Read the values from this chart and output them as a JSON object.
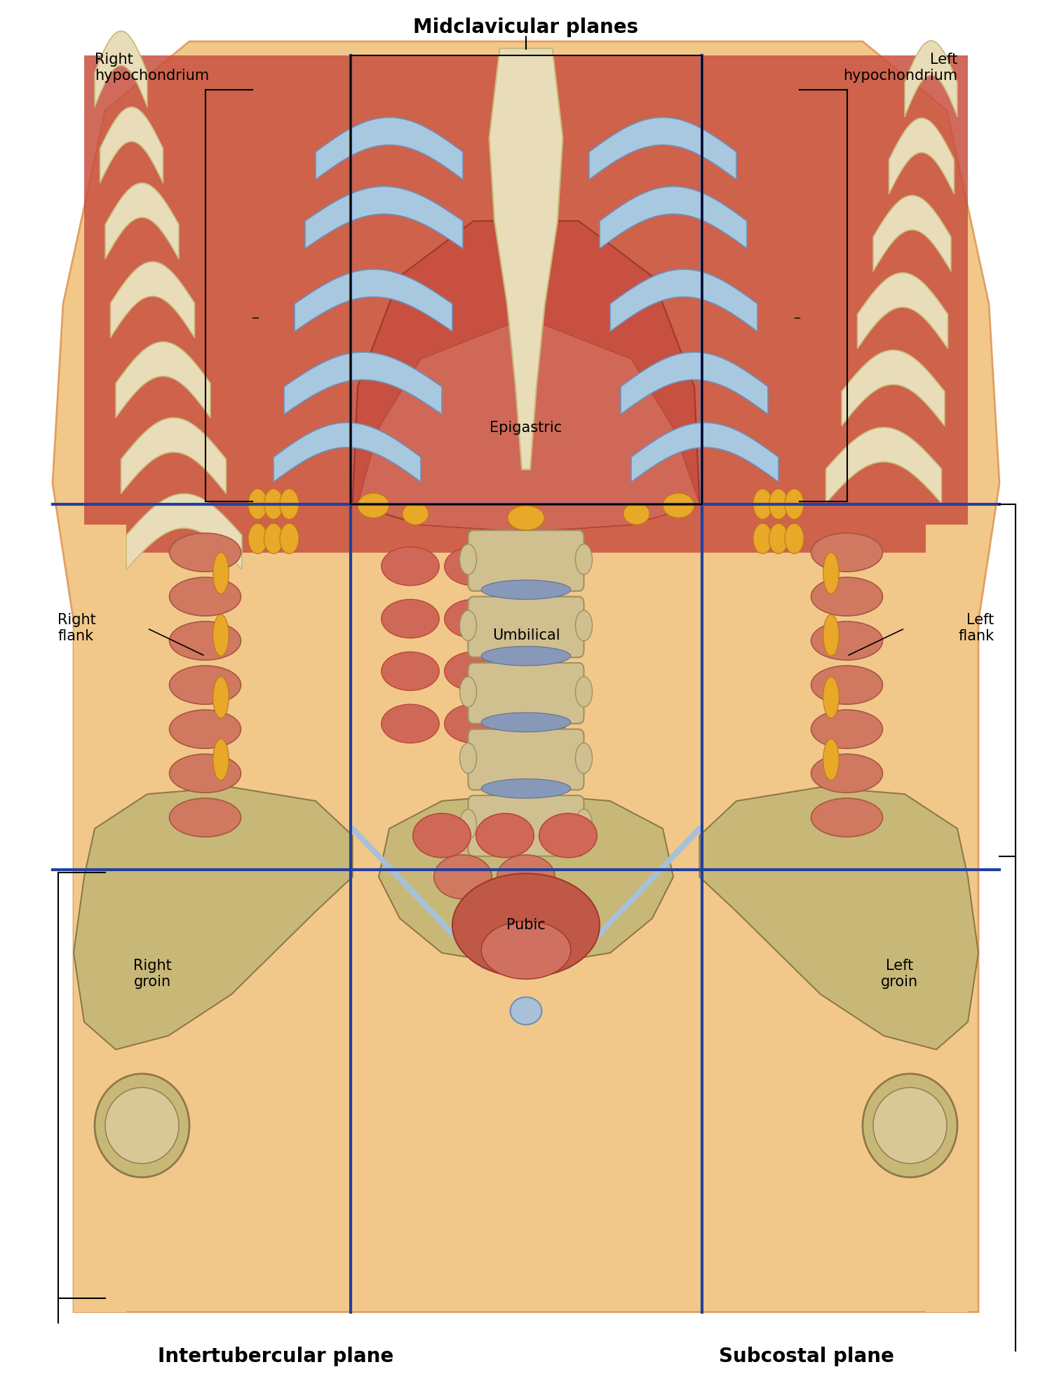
{
  "figsize": [
    15.0,
    19.69
  ],
  "dpi": 100,
  "bg_color": "#ffffff",
  "labels": {
    "right_hypochondrium": "Right\nhypochondrium",
    "left_hypochondrium": "Left\nhypochondrium",
    "midclavicular_planes": "Midclavicular planes",
    "epigastric": "Epigastric",
    "right_flank": "Right\nflank",
    "left_flank": "Left\nflank",
    "umbilical": "Umbilical",
    "right_groin": "Right\ngroin",
    "left_groin": "Left\ngroin",
    "pubic": "Pubic",
    "intertubercular_plane": "Intertubercular plane",
    "subcostal_plane": "Subcostal plane"
  },
  "skin_color": "#f2c88a",
  "skin_edge_color": "#e0a060",
  "rib_bone_color": "#e8ddb8",
  "rib_bone_edge": "#c8b878",
  "rib_cartilage_color": "#a8c8e0",
  "rib_cartilage_edge": "#7090b8",
  "muscle_color": "#c85040",
  "muscle_dark": "#a03828",
  "liver_color": "#b84838",
  "liver_light": "#d06858",
  "colon_color": "#d07860",
  "colon_edge": "#a85840",
  "spine_color": "#d0c090",
  "spine_edge": "#a09060",
  "disc_color": "#8898b8",
  "fat_color": "#e8a828",
  "pelvis_color": "#c8b878",
  "pelvis_edge": "#907848",
  "bladder_color": "#c05848",
  "ligament_color": "#a8c0d8",
  "grid_color": "#2240a0",
  "grid_lw": 3.0,
  "anno_color": "#000000",
  "vl": 0.333,
  "vr": 0.667,
  "ht": 0.635,
  "hb": 0.37
}
